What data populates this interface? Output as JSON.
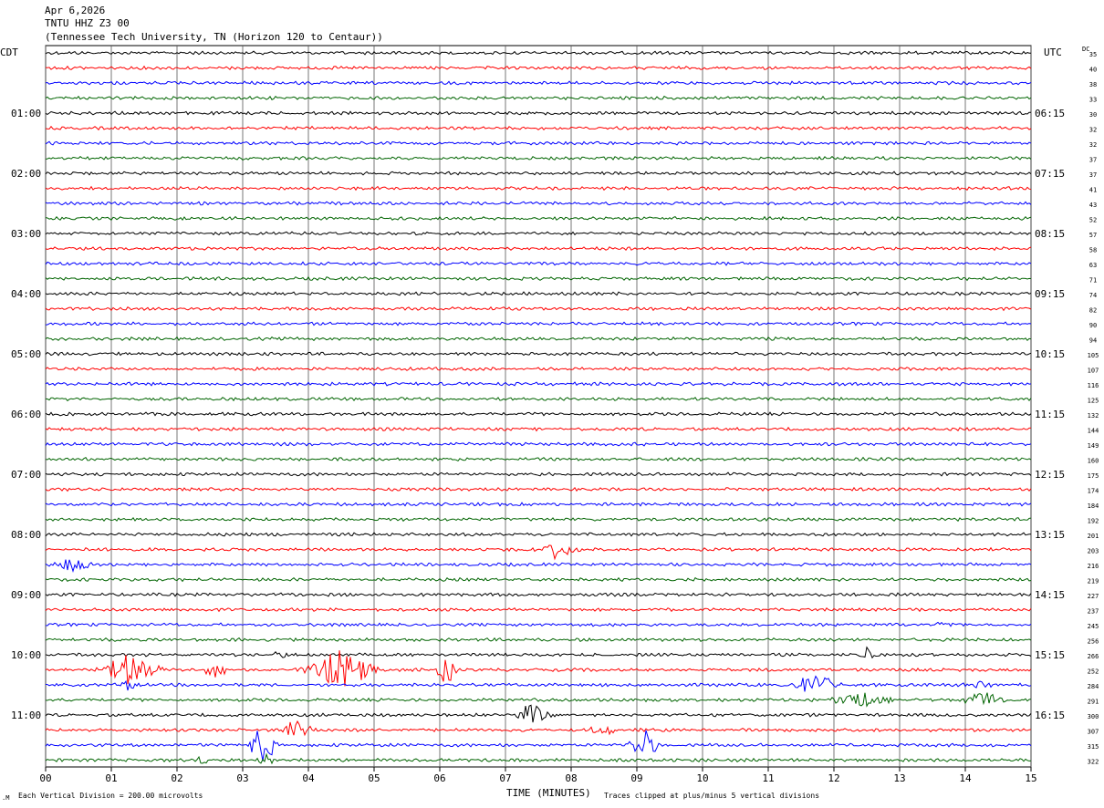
{
  "header": {
    "date": "Apr 6,2026",
    "station": "TNTU HHZ Z3 00",
    "location": "(Tennessee Tech University, TN (Horizon 120 to Centaur))"
  },
  "left_axis_title": "CDT",
  "right_axis_title": "UTC",
  "dc_title": "DC",
  "footer": {
    "scale_note": "Each Vertical Division =  200.00 microvolts",
    "xlabel": "TIME (MINUTES)",
    "clip_note": "Traces clipped at plus/minus 5 vertical divisions"
  },
  "colors": {
    "trace_cycle": [
      "#000000",
      "#ff0000",
      "#0000ff",
      "#006400"
    ],
    "grid": "#000000"
  },
  "chart_data": {
    "type": "line",
    "title": "TNTU HHZ Z3 00",
    "xlabel": "TIME (MINUTES)",
    "xlim": [
      0,
      15
    ],
    "x_ticks": [
      "00",
      "01",
      "02",
      "03",
      "04",
      "05",
      "06",
      "07",
      "08",
      "09",
      "10",
      "11",
      "12",
      "13",
      "14",
      "15"
    ],
    "rows": 48,
    "minutes_per_row": 15,
    "left_time_labels": [
      "01:00",
      "02:00",
      "03:00",
      "04:00",
      "05:00",
      "06:00",
      "07:00",
      "08:00",
      "09:00",
      "10:00",
      "11:00"
    ],
    "left_label_rows": [
      4,
      8,
      12,
      16,
      20,
      24,
      28,
      32,
      36,
      40,
      44
    ],
    "right_time_labels": [
      "06:15",
      "07:15",
      "08:15",
      "09:15",
      "10:15",
      "11:15",
      "12:15",
      "13:15",
      "14:15",
      "15:15",
      "16:15"
    ],
    "right_label_rows": [
      4,
      8,
      12,
      16,
      20,
      24,
      28,
      32,
      36,
      40,
      44
    ],
    "dc_offsets": [
      35,
      40,
      38,
      33,
      30,
      32,
      32,
      37,
      37,
      41,
      43,
      52,
      57,
      58,
      63,
      71,
      74,
      82,
      90,
      94,
      105,
      107,
      116,
      125,
      132,
      144,
      149,
      160,
      175,
      174,
      184,
      192,
      201,
      203,
      216,
      219,
      227,
      237,
      245,
      256,
      266,
      252,
      284,
      291,
      300,
      307,
      315,
      322
    ],
    "events": [
      {
        "row": 33,
        "minute": 7.8,
        "amplitude": 10,
        "duration": 0.6
      },
      {
        "row": 34,
        "minute": 0.4,
        "amplitude": 12,
        "duration": 0.5
      },
      {
        "row": 38,
        "minute": 13.6,
        "amplitude": 3,
        "duration": 0.2
      },
      {
        "row": 40,
        "minute": 3.6,
        "amplitude": 4,
        "duration": 0.3
      },
      {
        "row": 40,
        "minute": 12.5,
        "amplitude": 14,
        "duration": 0.2
      },
      {
        "row": 41,
        "minute": 1.3,
        "amplitude": 18,
        "duration": 0.8
      },
      {
        "row": 41,
        "minute": 2.6,
        "amplitude": 8,
        "duration": 0.5
      },
      {
        "row": 41,
        "minute": 4.5,
        "amplitude": 22,
        "duration": 0.9
      },
      {
        "row": 41,
        "minute": 6.1,
        "amplitude": 14,
        "duration": 0.3
      },
      {
        "row": 42,
        "minute": 1.3,
        "amplitude": 8,
        "duration": 0.3
      },
      {
        "row": 42,
        "minute": 11.7,
        "amplitude": 12,
        "duration": 0.6
      },
      {
        "row": 42,
        "minute": 14.2,
        "amplitude": 4,
        "duration": 0.5
      },
      {
        "row": 43,
        "minute": 12.4,
        "amplitude": 9,
        "duration": 0.8
      },
      {
        "row": 43,
        "minute": 14.3,
        "amplitude": 9,
        "duration": 0.6
      },
      {
        "row": 44,
        "minute": 7.4,
        "amplitude": 12,
        "duration": 0.5
      },
      {
        "row": 45,
        "minute": 3.8,
        "amplitude": 11,
        "duration": 0.5
      },
      {
        "row": 45,
        "minute": 8.5,
        "amplitude": 5,
        "duration": 0.5
      },
      {
        "row": 46,
        "minute": 3.3,
        "amplitude": 20,
        "duration": 0.4
      },
      {
        "row": 46,
        "minute": 9.1,
        "amplitude": 17,
        "duration": 0.4
      },
      {
        "row": 47,
        "minute": 2.4,
        "amplitude": 5,
        "duration": 0.2
      },
      {
        "row": 47,
        "minute": 3.35,
        "amplitude": 6,
        "duration": 0.3
      }
    ]
  }
}
